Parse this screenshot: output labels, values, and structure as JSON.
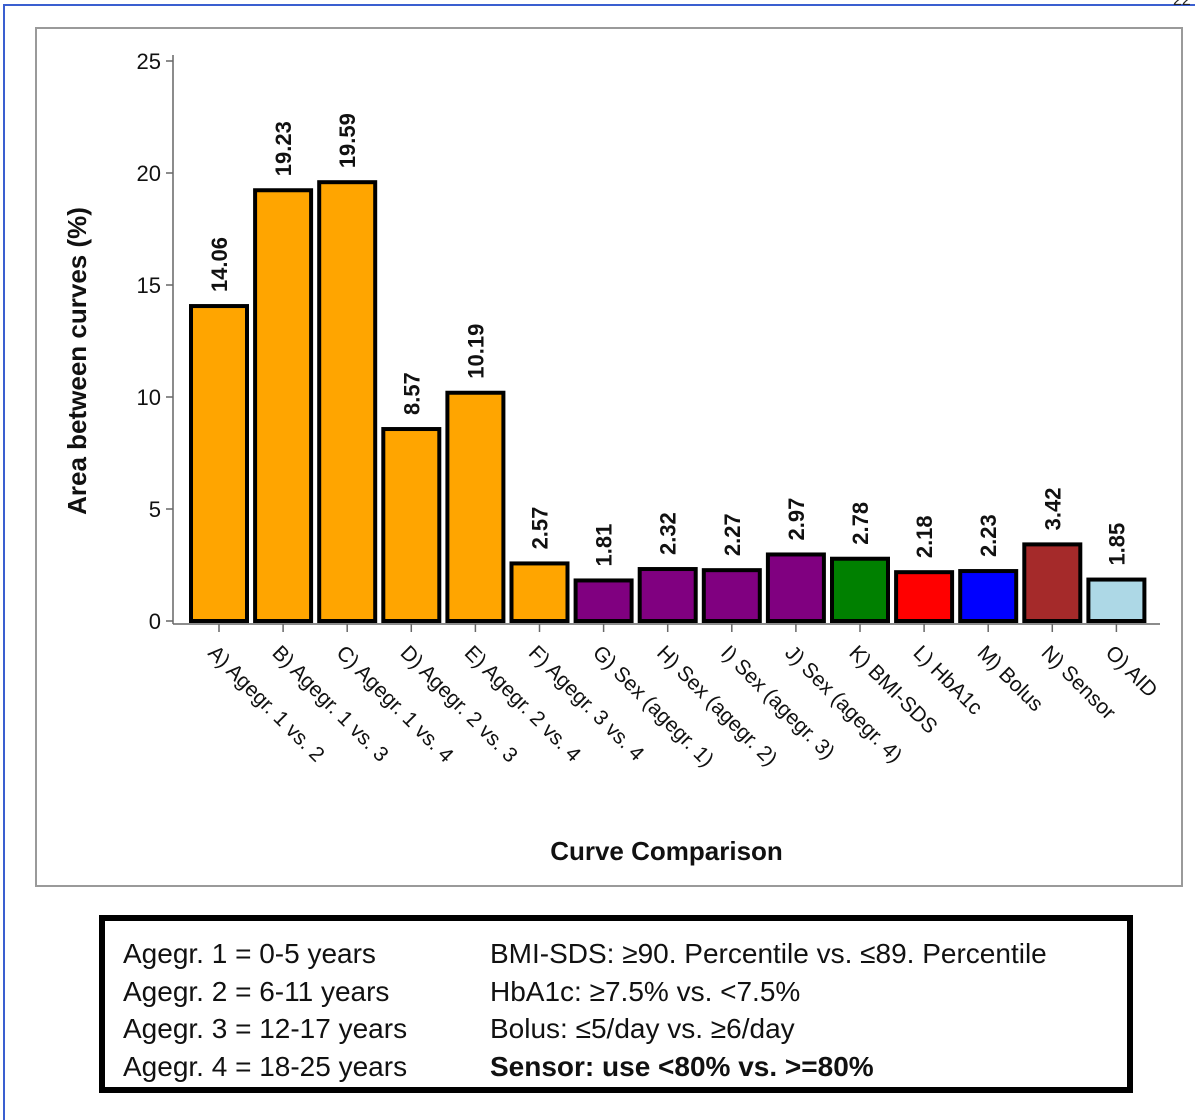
{
  "page_number": "22",
  "colors": {
    "orange": "#ffa500",
    "purple": "#800080",
    "green": "#008000",
    "red": "#ff0000",
    "blue": "#0000ff",
    "brown": "#a52a2a",
    "lightblue": "#add8e6"
  },
  "chart_data": {
    "type": "bar",
    "title": "",
    "xlabel": "Curve Comparison",
    "ylabel": "Area between curves (%)",
    "ylim": [
      0,
      25
    ],
    "yticks": [
      0,
      5,
      10,
      15,
      20,
      25
    ],
    "grid": false,
    "categories": [
      "A) Agegr. 1 vs. 2",
      "B) Agegr. 1 vs. 3",
      "C) Agegr. 1 vs. 4",
      "D) Agegr. 2 vs. 3",
      "E) Agegr. 2 vs. 4",
      "F) Agegr. 3 vs. 4",
      "G) Sex (agegr. 1)",
      "H) Sex (agegr. 2)",
      "I) Sex (agegr. 3)",
      "J) Sex (agegr. 4)",
      "K) BMI-SDS",
      "L) HbA1c",
      "M) Bolus",
      "N) Sensor",
      "O) AID"
    ],
    "values": [
      14.06,
      19.23,
      19.59,
      8.57,
      10.19,
      2.57,
      1.81,
      2.32,
      2.27,
      2.97,
      2.78,
      2.18,
      2.23,
      3.42,
      1.85
    ],
    "value_labels": [
      "14.06",
      "19.23",
      "19.59",
      "8.57",
      "10.19",
      "2.57",
      "1.81",
      "2.32",
      "2.27",
      "2.97",
      "2.78",
      "2.18",
      "2.23",
      "3.42",
      "1.85"
    ],
    "bar_colors": [
      "#ffa500",
      "#ffa500",
      "#ffa500",
      "#ffa500",
      "#ffa500",
      "#ffa500",
      "#800080",
      "#800080",
      "#800080",
      "#800080",
      "#008000",
      "#ff0000",
      "#0000ff",
      "#a52a2a",
      "#add8e6"
    ]
  },
  "legend": {
    "left": [
      "Agegr. 1 = 0-5 years",
      "Agegr. 2 = 6-11 years",
      "Agegr. 3 = 12-17 years",
      "Agegr. 4 = 18-25 years"
    ],
    "right": [
      "BMI-SDS: ≥90. Percentile vs. ≤89. Percentile",
      "HbA1c: ≥7.5% vs. <7.5%",
      "Bolus: ≤5/day vs. ≥6/day",
      "Sensor: use <80% vs. >=80%"
    ]
  }
}
